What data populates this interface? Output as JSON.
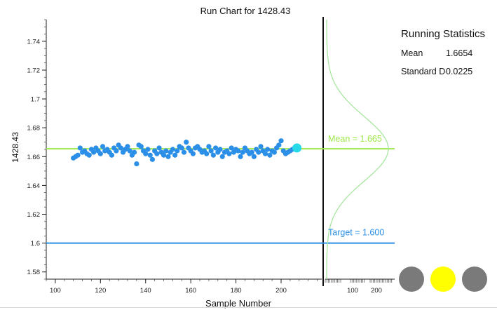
{
  "chart_data": {
    "type": "scatter",
    "title": "Run Chart for 1428.43",
    "xlabel": "Sample Number",
    "ylabel": "1428.43",
    "xlim": [
      96,
      218
    ],
    "ylim": [
      1.575,
      1.755
    ],
    "x_ticks": [
      100,
      120,
      140,
      160,
      180,
      200
    ],
    "y_ticks": [
      1.58,
      1.6,
      1.62,
      1.64,
      1.66,
      1.68,
      1.7,
      1.72,
      1.74
    ],
    "grid": false,
    "series": [
      {
        "points": [
          [
            108,
            1.659
          ],
          [
            109,
            1.66
          ],
          [
            110,
            1.661
          ],
          [
            111,
            1.666
          ],
          [
            112,
            1.663
          ],
          [
            113,
            1.664
          ],
          [
            114,
            1.662
          ],
          [
            115,
            1.661
          ],
          [
            116,
            1.665
          ],
          [
            117,
            1.663
          ],
          [
            118,
            1.666
          ],
          [
            119,
            1.664
          ],
          [
            120,
            1.662
          ],
          [
            121,
            1.667
          ],
          [
            122,
            1.664
          ],
          [
            123,
            1.665
          ],
          [
            124,
            1.663
          ],
          [
            125,
            1.661
          ],
          [
            126,
            1.666
          ],
          [
            127,
            1.664
          ],
          [
            128,
            1.668
          ],
          [
            129,
            1.666
          ],
          [
            130,
            1.663
          ],
          [
            131,
            1.665
          ],
          [
            132,
            1.667
          ],
          [
            133,
            1.664
          ],
          [
            134,
            1.661
          ],
          [
            135,
            1.663
          ],
          [
            136,
            1.655
          ],
          [
            137,
            1.668
          ],
          [
            138,
            1.667
          ],
          [
            139,
            1.664
          ],
          [
            140,
            1.662
          ],
          [
            141,
            1.665
          ],
          [
            142,
            1.661
          ],
          [
            143,
            1.658
          ],
          [
            144,
            1.664
          ],
          [
            145,
            1.662
          ],
          [
            146,
            1.666
          ],
          [
            147,
            1.663
          ],
          [
            148,
            1.661
          ],
          [
            149,
            1.664
          ],
          [
            150,
            1.66
          ],
          [
            151,
            1.663
          ],
          [
            152,
            1.665
          ],
          [
            153,
            1.661
          ],
          [
            154,
            1.664
          ],
          [
            155,
            1.667
          ],
          [
            156,
            1.666
          ],
          [
            157,
            1.663
          ],
          [
            158,
            1.67
          ],
          [
            159,
            1.666
          ],
          [
            160,
            1.664
          ],
          [
            161,
            1.662
          ],
          [
            162,
            1.666
          ],
          [
            163,
            1.667
          ],
          [
            164,
            1.665
          ],
          [
            165,
            1.663
          ],
          [
            166,
            1.664
          ],
          [
            167,
            1.662
          ],
          [
            168,
            1.667
          ],
          [
            169,
            1.664
          ],
          [
            170,
            1.661
          ],
          [
            171,
            1.666
          ],
          [
            172,
            1.663
          ],
          [
            173,
            1.665
          ],
          [
            174,
            1.66
          ],
          [
            175,
            1.663
          ],
          [
            176,
            1.664
          ],
          [
            177,
            1.662
          ],
          [
            178,
            1.666
          ],
          [
            179,
            1.663
          ],
          [
            180,
            1.665
          ],
          [
            181,
            1.664
          ],
          [
            182,
            1.66
          ],
          [
            183,
            1.663
          ],
          [
            184,
            1.666
          ],
          [
            185,
            1.664
          ],
          [
            186,
            1.662
          ],
          [
            187,
            1.663
          ],
          [
            188,
            1.66
          ],
          [
            189,
            1.665
          ],
          [
            190,
            1.663
          ],
          [
            191,
            1.667
          ],
          [
            192,
            1.664
          ],
          [
            193,
            1.662
          ],
          [
            194,
            1.665
          ],
          [
            195,
            1.661
          ],
          [
            196,
            1.664
          ],
          [
            197,
            1.663
          ],
          [
            198,
            1.666
          ],
          [
            199,
            1.668
          ],
          [
            200,
            1.671
          ],
          [
            201,
            1.664
          ],
          [
            202,
            1.662
          ],
          [
            203,
            1.663
          ],
          [
            204,
            1.664
          ],
          [
            205,
            1.665
          ]
        ],
        "color": "#2b8fe8"
      }
    ],
    "latest_point": {
      "x": 207,
      "y": 1.666,
      "color": "#26d9e6"
    },
    "mean_line": {
      "value": 1.6654,
      "label": "Mean = 1.665",
      "color": "#9ee84a"
    },
    "target_line": {
      "value": 1.6,
      "label": "Target = 1.600",
      "color": "#2b8fe8"
    },
    "histogram": {
      "x_tick_labels": [
        "100",
        "200"
      ],
      "curve_color": "#a8e6a0",
      "mean": 1.6654,
      "stdev": 0.0225
    }
  },
  "stats": {
    "title": "Running Statistics",
    "rows": [
      {
        "key": "Mean",
        "value": "1.6654"
      },
      {
        "key": "Standard Deviation",
        "value": "0.0225"
      }
    ]
  },
  "lamps": [
    {
      "color": "#7a7a7a"
    },
    {
      "color": "#ffff00"
    },
    {
      "color": "#7a7a7a"
    }
  ]
}
